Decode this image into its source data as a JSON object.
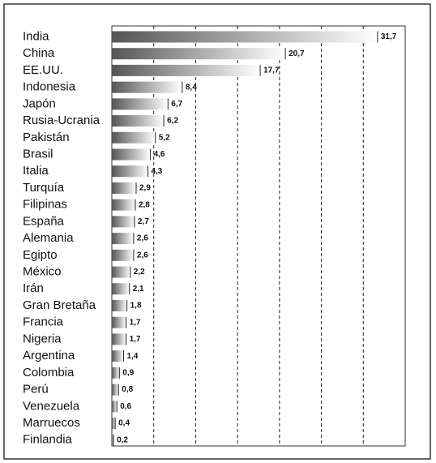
{
  "chart_data": {
    "type": "bar",
    "orientation": "horizontal",
    "categories": [
      "India",
      "China",
      "EE.UU.",
      "Indonesia",
      "Japón",
      "Rusia-Ucrania",
      "Pakistán",
      "Brasil",
      "Italia",
      "Turquía",
      "Filipinas",
      "España",
      "Alemania",
      "Egipto",
      "México",
      "Irán",
      "Gran Bretaña",
      "Francia",
      "Nigeria",
      "Argentina",
      "Colombia",
      "Perú",
      "Venezuela",
      "Marruecos",
      "Finlandia"
    ],
    "values": [
      31.7,
      20.7,
      17.7,
      8.4,
      6.7,
      6.2,
      5.2,
      4.6,
      4.3,
      2.9,
      2.8,
      2.7,
      2.6,
      2.6,
      2.2,
      2.1,
      1.8,
      1.7,
      1.7,
      1.4,
      0.9,
      0.8,
      0.6,
      0.4,
      0.2
    ],
    "value_labels": [
      "31,7",
      "20,7",
      "17,7",
      "8,4",
      "6,7",
      "6,2",
      "5,2",
      "4,6",
      "4,3",
      "2,9",
      "2,8",
      "2,7",
      "2,6",
      "2,6",
      "2,2",
      "2,1",
      "1,8",
      "1,7",
      "1,7",
      "1,4",
      "0,9",
      "0,8",
      "0,6",
      "0,4",
      "0,2"
    ],
    "color": [
      "#555555",
      "#ffffff"
    ],
    "xlim": [
      0,
      35
    ],
    "xticks": [
      5,
      10,
      15,
      20,
      25,
      30
    ],
    "grid": true
  }
}
